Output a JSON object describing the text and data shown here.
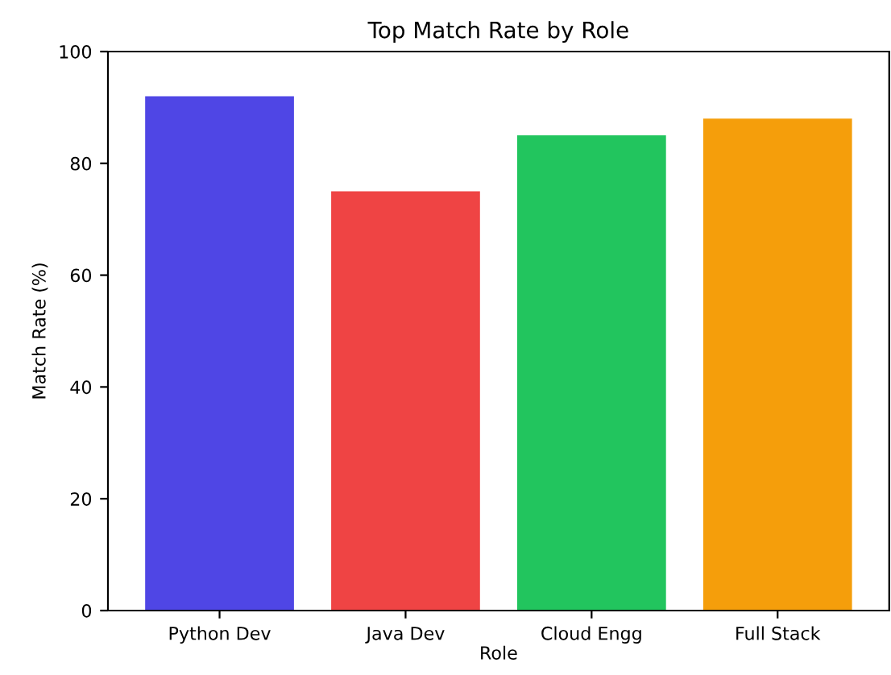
{
  "chart_data": {
    "type": "bar",
    "title": "Top Match Rate by Role",
    "xlabel": "Role",
    "ylabel": "Match Rate (%)",
    "categories": [
      "Python Dev",
      "Java Dev",
      "Cloud Engg",
      "Full Stack"
    ],
    "values": [
      92,
      75,
      85,
      88
    ],
    "colors": [
      "#4f46e5",
      "#ef4444",
      "#22c55e",
      "#f59e0b"
    ],
    "ylim": [
      0,
      100
    ],
    "yticks": [
      0,
      20,
      40,
      60,
      80,
      100
    ],
    "grid": false
  }
}
